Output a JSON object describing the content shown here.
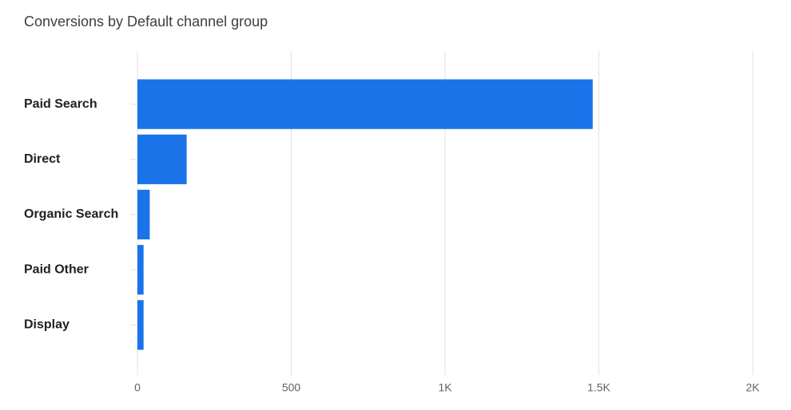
{
  "chart_data": {
    "type": "hbar",
    "title": "Conversions by Default channel group",
    "categories": [
      "Paid Search",
      "Direct",
      "Organic Search",
      "Paid Other",
      "Display"
    ],
    "values": [
      1480,
      160,
      40,
      20,
      20
    ],
    "color": "#1a73e8",
    "xlim": [
      0,
      2000
    ],
    "xticks": [
      0,
      500,
      {
        "value": 1000,
        "label": "1K"
      },
      {
        "value": 1500,
        "label": "1.5K"
      },
      {
        "value": 2000,
        "label": "2K"
      }
    ],
    "grid": true
  }
}
